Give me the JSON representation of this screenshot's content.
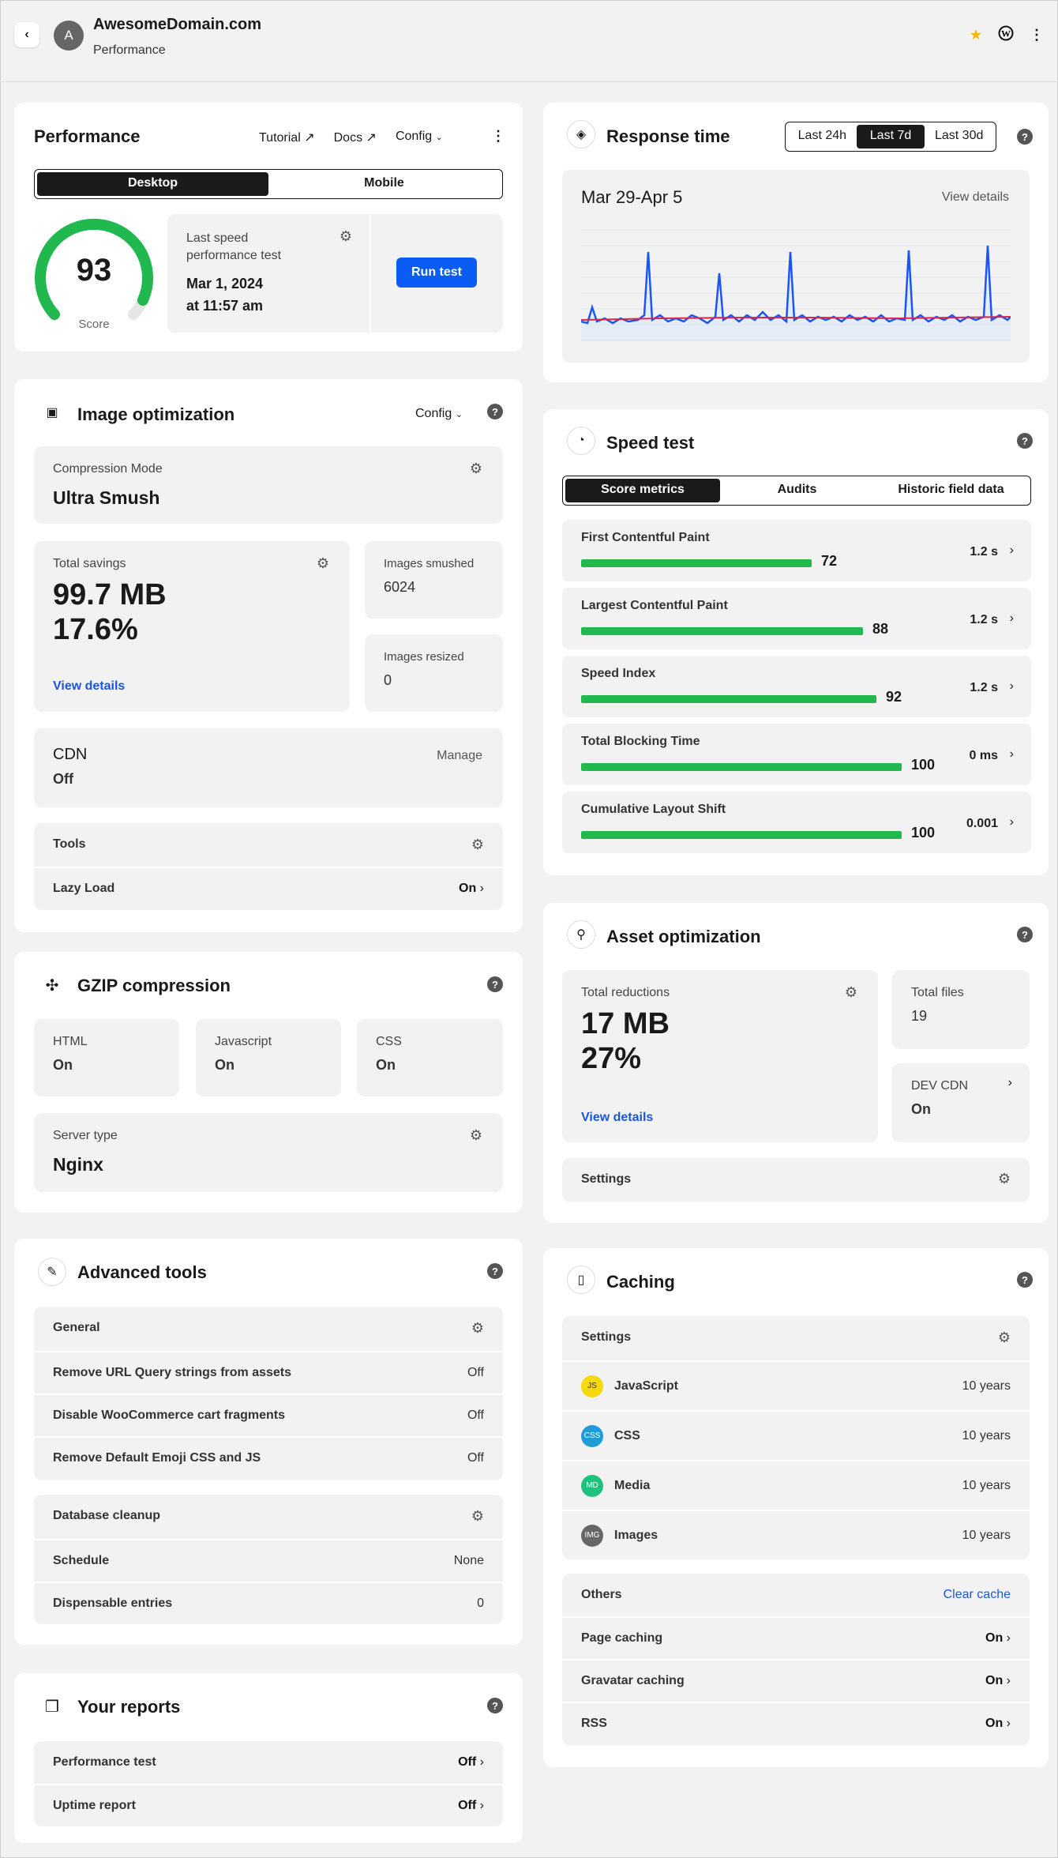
{
  "header": {
    "avatar_letter": "A",
    "site": "AwesomeDomain.com",
    "section": "Performance"
  },
  "performance": {
    "title": "Performance",
    "links": [
      "Tutorial",
      "Docs",
      "Config"
    ],
    "tabs": [
      "Desktop",
      "Mobile"
    ],
    "score": "93",
    "score_label": "Score",
    "score_value": 0.93,
    "last_test_label": "Last speed performance test",
    "last_test_date": "Mar 1, 2024",
    "last_test_time": "at 11:57 am",
    "run_button": "Run test"
  },
  "image_opt": {
    "title": "Image optimization",
    "config": "Config",
    "compression_label": "Compression Mode",
    "compression_value": "Ultra Smush",
    "savings_label": "Total savings",
    "savings_mb": "99.7 MB",
    "savings_pct": "17.6%",
    "view_details": "View details",
    "smushed_label": "Images smushed",
    "smushed_value": "6024",
    "resized_label": "Images resized",
    "resized_value": "0",
    "cdn_label": "CDN",
    "cdn_value": "Off",
    "cdn_manage": "Manage",
    "tools_label": "Tools",
    "lazy_label": "Lazy Load",
    "lazy_value": "On"
  },
  "gzip": {
    "title": "GZIP compression",
    "html_label": "HTML",
    "html_value": "On",
    "js_label": "Javascript",
    "js_value": "On",
    "css_label": "CSS",
    "css_value": "On",
    "server_label": "Server type",
    "server_value": "Nginx"
  },
  "advanced": {
    "title": "Advanced tools",
    "general": "General",
    "rows": [
      {
        "label": "Remove URL Query strings from assets",
        "value": "Off"
      },
      {
        "label": "Disable WooCommerce cart fragments",
        "value": "Off"
      },
      {
        "label": "Remove Default Emoji CSS and JS",
        "value": "Off"
      }
    ],
    "db_label": "Database cleanup",
    "schedule_label": "Schedule",
    "schedule_value": "None",
    "dispensable_label": "Dispensable entries",
    "dispensable_value": "0"
  },
  "reports": {
    "title": "Your reports",
    "rows": [
      {
        "label": "Performance test",
        "value": "Off"
      },
      {
        "label": "Uptime report",
        "value": "Off"
      }
    ]
  },
  "response": {
    "title": "Response time",
    "ranges": [
      "Last 24h",
      "Last 7d",
      "Last 30d"
    ],
    "period": "Mar 29-Apr 5",
    "view_details": "View details"
  },
  "speed": {
    "title": "Speed test",
    "tabs": [
      "Score metrics",
      "Audits",
      "Historic field data"
    ],
    "metrics": [
      {
        "name": "First Contentful Paint",
        "score": "72",
        "time": "1.2 s"
      },
      {
        "name": "Largest Contentful Paint",
        "score": "88",
        "time": "1.2 s"
      },
      {
        "name": "Speed Index",
        "score": "92",
        "time": "1.2 s"
      },
      {
        "name": "Total Blocking Time",
        "score": "100",
        "time": "0 ms"
      },
      {
        "name": "Cumulative Layout Shift",
        "score": "100",
        "time": "0.001"
      }
    ]
  },
  "asset": {
    "title": "Asset optimization",
    "reductions_label": "Total reductions",
    "reductions_mb": "17 MB",
    "reductions_pct": "27%",
    "view_details": "View details",
    "files_label": "Total files",
    "files_value": "19",
    "cdn_label": "DEV CDN",
    "cdn_value": "On",
    "settings": "Settings"
  },
  "caching": {
    "title": "Caching",
    "settings": "Settings",
    "types": [
      {
        "badge": "JS",
        "label": "JavaScript",
        "value": "10 years",
        "color": "#f5d90a"
      },
      {
        "badge": "CSS",
        "label": "CSS",
        "value": "10 years",
        "color": "#1f9bd8"
      },
      {
        "badge": "MD",
        "label": "Media",
        "value": "10 years",
        "color": "#1ec27d"
      },
      {
        "badge": "IMG",
        "label": "Images",
        "value": "10 years",
        "color": "#666666"
      }
    ],
    "others": "Others",
    "clear": "Clear cache",
    "rows": [
      {
        "label": "Page caching",
        "value": "On"
      },
      {
        "label": "Gravatar caching",
        "value": "On"
      },
      {
        "label": "RSS",
        "value": "On"
      }
    ]
  }
}
